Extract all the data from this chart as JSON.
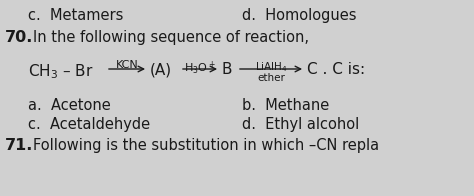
{
  "bg_color": "#d0d0d0",
  "text_color": "#1a1a1a",
  "line1_left": "c.  Metamers",
  "line1_right": "d.  Homologues",
  "q70_label": "70.",
  "q70_text": "In the following sequence of reaction,",
  "ch3br": "CH₃ – Br",
  "arrow1_top": "KCN",
  "react_A": "(A)",
  "arrow2_top": "H₃O⁺",
  "react_B": "B",
  "arrow3_top": "LiAlH₄",
  "arrow3_bot": "ether",
  "react_C": "C . C is:",
  "ans_a": "a.  Acetone",
  "ans_b": "b.  Methane",
  "ans_c": "c.  Acetaldehyde",
  "ans_d": "d.  Ethyl alcohol",
  "q71_label": "71.",
  "q71_text": "Following is the substitution in which –CN repla",
  "figw": 4.74,
  "figh": 1.96,
  "dpi": 100
}
